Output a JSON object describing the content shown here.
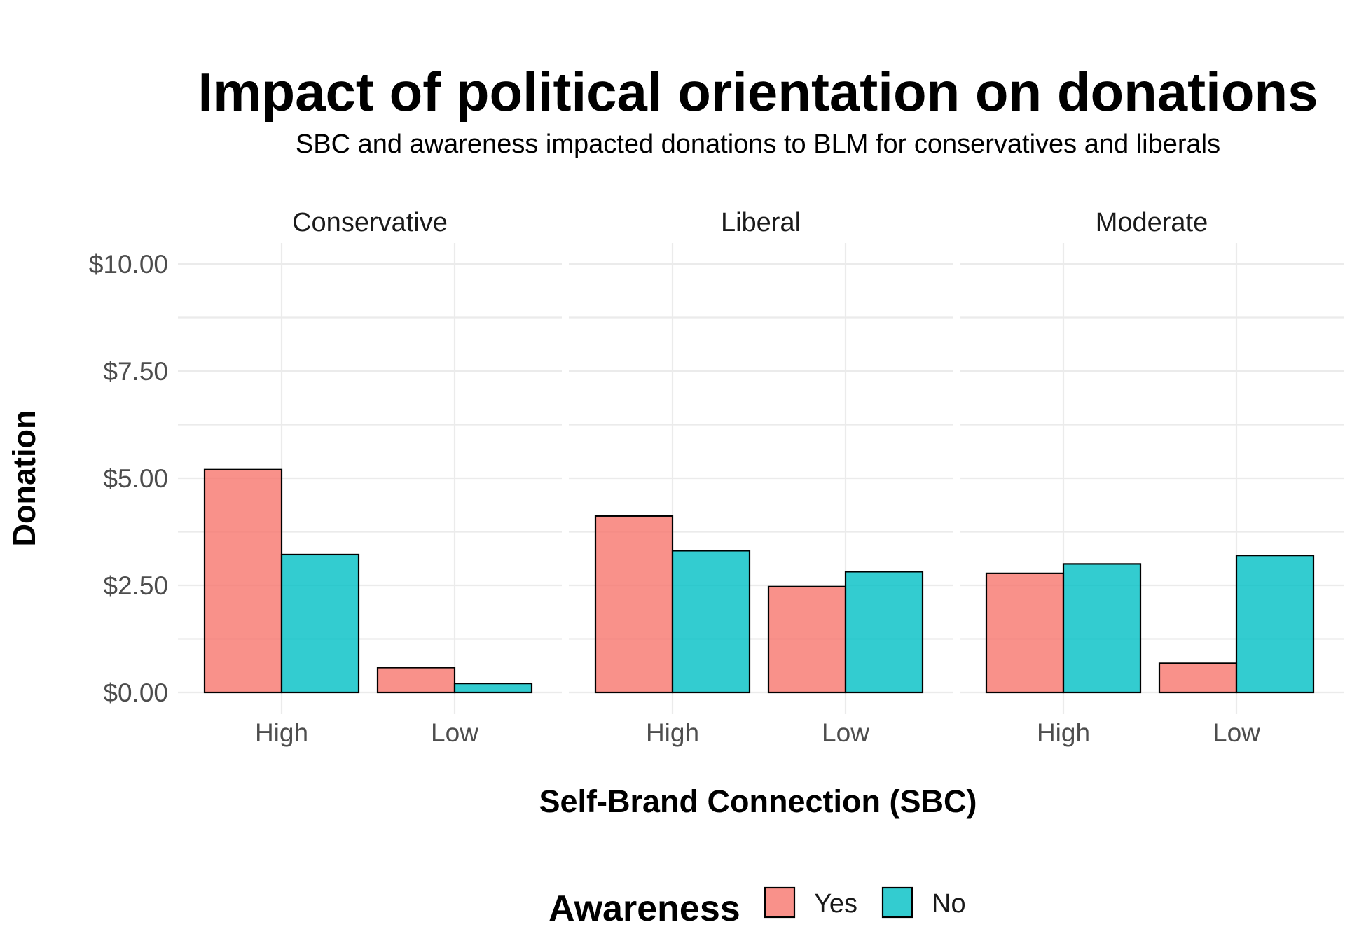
{
  "chart_data": {
    "type": "bar",
    "title": "Impact of political orientation on donations",
    "subtitle": "SBC and awareness impacted donations to BLM for conservatives and liberals",
    "xlabel": "Self-Brand Connection (SBC)",
    "ylabel": "Donation",
    "ylim": [
      0,
      10
    ],
    "y_ticks": [
      {
        "value": 0,
        "label": "$0.00"
      },
      {
        "value": 2.5,
        "label": "$2.50"
      },
      {
        "value": 5,
        "label": "$5.00"
      },
      {
        "value": 7.5,
        "label": "$7.50"
      },
      {
        "value": 10,
        "label": "$10.00"
      }
    ],
    "categories": [
      "High",
      "Low"
    ],
    "grid": true,
    "legend": {
      "title": "Awareness",
      "placement": "bottom",
      "entries": [
        {
          "name": "Yes",
          "color": "#F8766D"
        },
        {
          "name": "No",
          "color": "#00BFC4"
        }
      ]
    },
    "facets": [
      {
        "name": "Conservative",
        "series": [
          {
            "name": "Yes",
            "values": [
              5.2,
              0.58
            ]
          },
          {
            "name": "No",
            "values": [
              3.22,
              0.21
            ]
          }
        ]
      },
      {
        "name": "Liberal",
        "series": [
          {
            "name": "Yes",
            "values": [
              4.12,
              2.47
            ]
          },
          {
            "name": "No",
            "values": [
              3.31,
              2.82
            ]
          }
        ]
      },
      {
        "name": "Moderate",
        "series": [
          {
            "name": "Yes",
            "values": [
              2.78,
              0.68
            ]
          },
          {
            "name": "No",
            "values": [
              3.0,
              3.2
            ]
          }
        ]
      }
    ]
  }
}
